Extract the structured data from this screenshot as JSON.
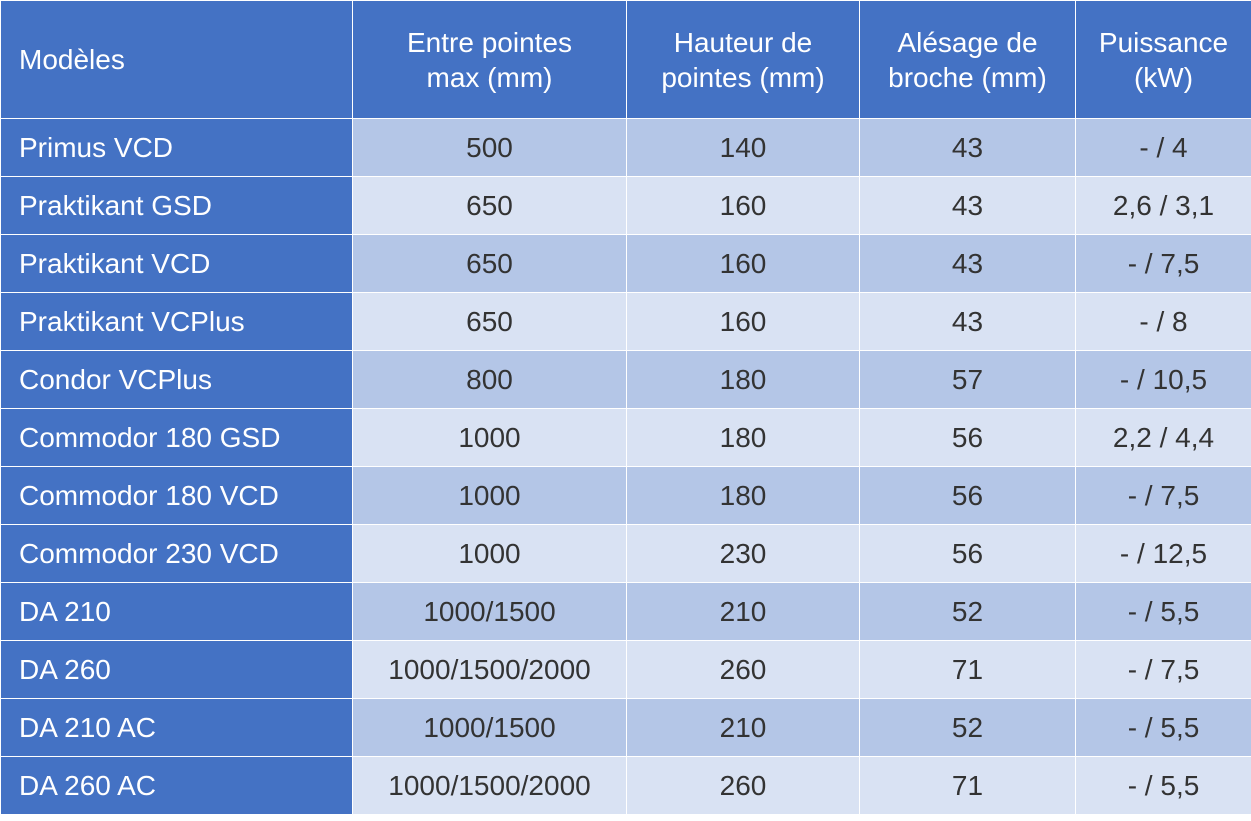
{
  "columns": [
    "Modèles",
    "Entre pointes\nmax (mm)",
    "Hauteur de\npointes (mm)",
    "Alésage de\nbroche (mm)",
    "Puissance\n(kW)"
  ],
  "rows": [
    [
      "Primus VCD",
      "500",
      "140",
      "43",
      "- / 4"
    ],
    [
      "Praktikant GSD",
      "650",
      "160",
      "43",
      "2,6 / 3,1"
    ],
    [
      "Praktikant VCD",
      "650",
      "160",
      "43",
      "- / 7,5"
    ],
    [
      "Praktikant VCPlus",
      "650",
      "160",
      "43",
      "- / 8"
    ],
    [
      "Condor VCPlus",
      "800",
      "180",
      "57",
      "- / 10,5"
    ],
    [
      "Commodor 180 GSD",
      "1000",
      "180",
      "56",
      "2,2 / 4,4"
    ],
    [
      "Commodor 180 VCD",
      "1000",
      "180",
      "56",
      "- / 7,5"
    ],
    [
      "Commodor 230 VCD",
      "1000",
      "230",
      "56",
      "- / 12,5"
    ],
    [
      "DA 210",
      "1000/1500",
      "210",
      "52",
      "- / 5,5"
    ],
    [
      "DA 260",
      "1000/1500/2000",
      "260",
      "71",
      "- / 7,5"
    ],
    [
      "DA 210 AC",
      "1000/1500",
      "210",
      "52",
      "- / 5,5"
    ],
    [
      "DA 260 AC",
      "1000/1500/2000",
      "260",
      "71",
      "- / 5,5"
    ]
  ],
  "colors": {
    "header_bg": "#4472c4",
    "row_odd_bg": "#b4c6e7",
    "row_even_bg": "#d9e2f3",
    "header_text": "#ffffff",
    "cell_text": "#333333"
  }
}
